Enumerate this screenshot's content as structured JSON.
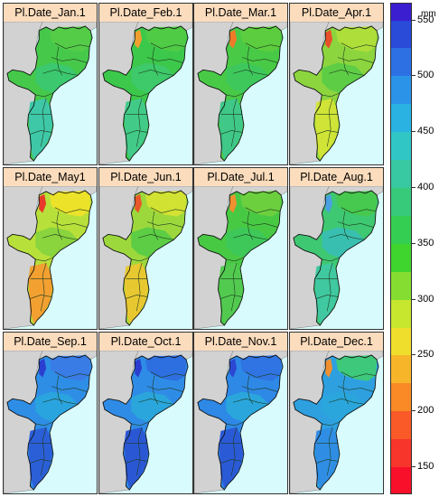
{
  "panels": [
    {
      "title": "Pl.Date_Jan.1",
      "scheme": [
        "#46c94a",
        "#54cc48",
        "#3bc86e",
        "#3ec8a8"
      ],
      "accent": null
    },
    {
      "title": "Pl.Date_Feb.1",
      "scheme": [
        "#3cc84a",
        "#4fcb46",
        "#3ec96a",
        "#42cb88"
      ],
      "accent": "#f0a030"
    },
    {
      "title": "Pl.Date_Mar.1",
      "scheme": [
        "#48ca46",
        "#5ccd3e",
        "#3ec85c",
        "#3fc888"
      ],
      "accent": "#f07a28"
    },
    {
      "title": "Pl.Date_Apr.1",
      "scheme": [
        "#8cd53e",
        "#aede3a",
        "#5ecd46",
        "#cfe436"
      ],
      "accent": "#e8502a"
    },
    {
      "title": "Pl.Date_May1",
      "scheme": [
        "#b8e03a",
        "#ece22a",
        "#8ad43e",
        "#f2a030"
      ],
      "accent": "#e83a2a"
    },
    {
      "title": "Pl.Date_Jun.1",
      "scheme": [
        "#9cd83c",
        "#d2e232",
        "#5ccd44",
        "#e8c830"
      ],
      "accent": "#e8562a"
    },
    {
      "title": "Pl.Date_Jul.1",
      "scheme": [
        "#48c944",
        "#6cd03e",
        "#3ec85a",
        "#52ca50"
      ],
      "accent": "#f09030"
    },
    {
      "title": "Pl.Date_Aug.1",
      "scheme": [
        "#3ec872",
        "#46c94e",
        "#38bfb0",
        "#40c8a0"
      ],
      "accent": "#4aa0e0"
    },
    {
      "title": "Pl.Date_Sep.1",
      "scheme": [
        "#2e8ee6",
        "#3a7ce6",
        "#2aa4de",
        "#2b5fd8"
      ],
      "accent": "#2a3ed0"
    },
    {
      "title": "Pl.Date_Oct.1",
      "scheme": [
        "#2f8ce6",
        "#2d6fe0",
        "#2aa6dc",
        "#2a58d4"
      ],
      "accent": "#2a3ed0"
    },
    {
      "title": "Pl.Date_Nov.1",
      "scheme": [
        "#2e88e6",
        "#2f74e2",
        "#2aa6dc",
        "#2a5ad6"
      ],
      "accent": "#2c48d2"
    },
    {
      "title": "Pl.Date_Dec.1",
      "scheme": [
        "#2ea0e0",
        "#3ec87c",
        "#2aa6dc",
        "#2f8ee4"
      ],
      "accent": "#f09030"
    }
  ],
  "legend": {
    "unit": "mm",
    "min": 125,
    "max": 565,
    "ticks": [
      150,
      200,
      250,
      300,
      350,
      400,
      450,
      500,
      550
    ],
    "bins": [
      {
        "from": 125,
        "to": 150,
        "color": "#f8102a"
      },
      {
        "from": 150,
        "to": 175,
        "color": "#f8352a"
      },
      {
        "from": 175,
        "to": 200,
        "color": "#f95a28"
      },
      {
        "from": 200,
        "to": 225,
        "color": "#f98a26"
      },
      {
        "from": 225,
        "to": 250,
        "color": "#f7b62a"
      },
      {
        "from": 250,
        "to": 275,
        "color": "#f0de2c"
      },
      {
        "from": 275,
        "to": 300,
        "color": "#c7e62e"
      },
      {
        "from": 300,
        "to": 325,
        "color": "#86dd32"
      },
      {
        "from": 325,
        "to": 350,
        "color": "#3fd52e"
      },
      {
        "from": 350,
        "to": 375,
        "color": "#34cf52"
      },
      {
        "from": 375,
        "to": 400,
        "color": "#36ca7a"
      },
      {
        "from": 400,
        "to": 425,
        "color": "#38c8a2"
      },
      {
        "from": 425,
        "to": 450,
        "color": "#30c6c6"
      },
      {
        "from": 450,
        "to": 475,
        "color": "#2ab2e2"
      },
      {
        "from": 475,
        "to": 500,
        "color": "#2c94e8"
      },
      {
        "from": 500,
        "to": 525,
        "color": "#2c70e4"
      },
      {
        "from": 525,
        "to": 550,
        "color": "#2a4ad8"
      },
      {
        "from": 550,
        "to": 565,
        "color": "#3a1ed0"
      }
    ]
  }
}
